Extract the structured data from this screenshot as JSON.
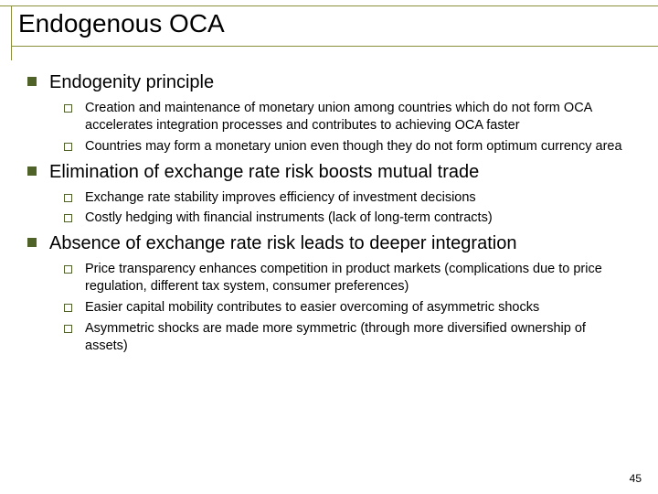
{
  "title": "Endogenous OCA",
  "pageNumber": "45",
  "colors": {
    "rule": "#8a8f3a",
    "bullet": "#4f6228",
    "text": "#000000",
    "background": "#ffffff"
  },
  "sections": [
    {
      "heading": "Endogenity principle",
      "items": [
        "Creation and maintenance of monetary union among countries which do not form OCA accelerates integration processes and contributes to achieving OCA faster",
        "Countries may form a monetary union even though they do not form optimum currency area"
      ]
    },
    {
      "heading": "Elimination of exchange rate risk boosts mutual trade",
      "items": [
        "Exchange rate stability improves efficiency of investment decisions",
        "Costly hedging with financial instruments (lack of long-term contracts)"
      ]
    },
    {
      "heading": "Absence of exchange rate risk leads to deeper integration",
      "items": [
        "Price transparency enhances competition in product markets (complications due to price regulation, different tax system, consumer preferences)",
        "Easier capital mobility contributes to easier overcoming of asymmetric shocks",
        "Asymmetric shocks are made more symmetric (through more diversified ownership of assets)"
      ]
    }
  ]
}
